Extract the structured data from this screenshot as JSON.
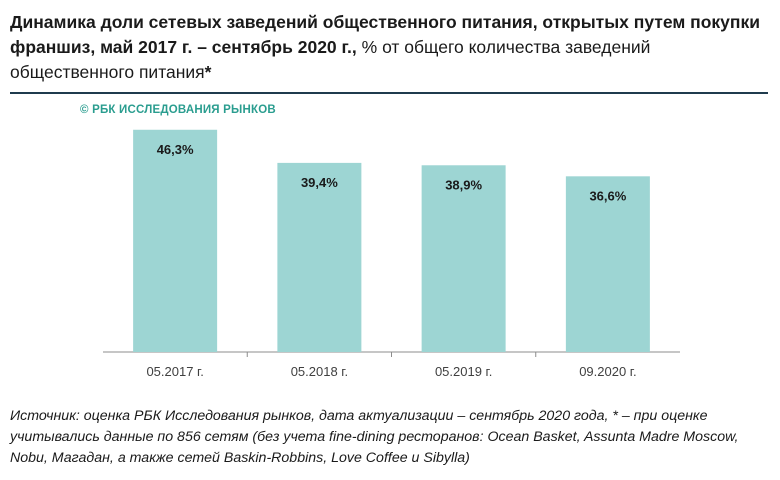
{
  "title_bold": "Динамика доли сетевых заведений общественного питания, открытых путем покупки франшиз, май 2017 г. – сентябрь 2020 г.,",
  "title_normal": " % от общего количества заведений общественного питания",
  "title_asterisk": "*",
  "watermark": "© РБК ИССЛЕДОВАНИЯ РЫНКОВ",
  "source": "Источник: оценка РБК Исследования рынков, дата актуализации – сентябрь 2020 года, * – при оценке учитывались данные по 856 сетям (без учета fine-dining ресторанов: Ocean Basket, Assunta Madre Moscow, Nobu, Магадан, а также сетей Baskin-Robbins, Love Coffee и Sibylla)",
  "colors": {
    "bar": "#9dd5d3",
    "axis": "#8c8c8c",
    "rule": "#1f3b4d",
    "watermark": "#2a9d8f"
  },
  "chart_data": {
    "type": "bar",
    "categories": [
      "05.2017 г.",
      "05.2018 г.",
      "05.2019 г.",
      "09.2020 г."
    ],
    "values": [
      46.3,
      39.4,
      38.9,
      36.6
    ],
    "value_labels": [
      "46,3%",
      "39,4%",
      "38,9%",
      "36,6%"
    ],
    "ylim": [
      0,
      50
    ],
    "grid": false,
    "legend": "none"
  }
}
